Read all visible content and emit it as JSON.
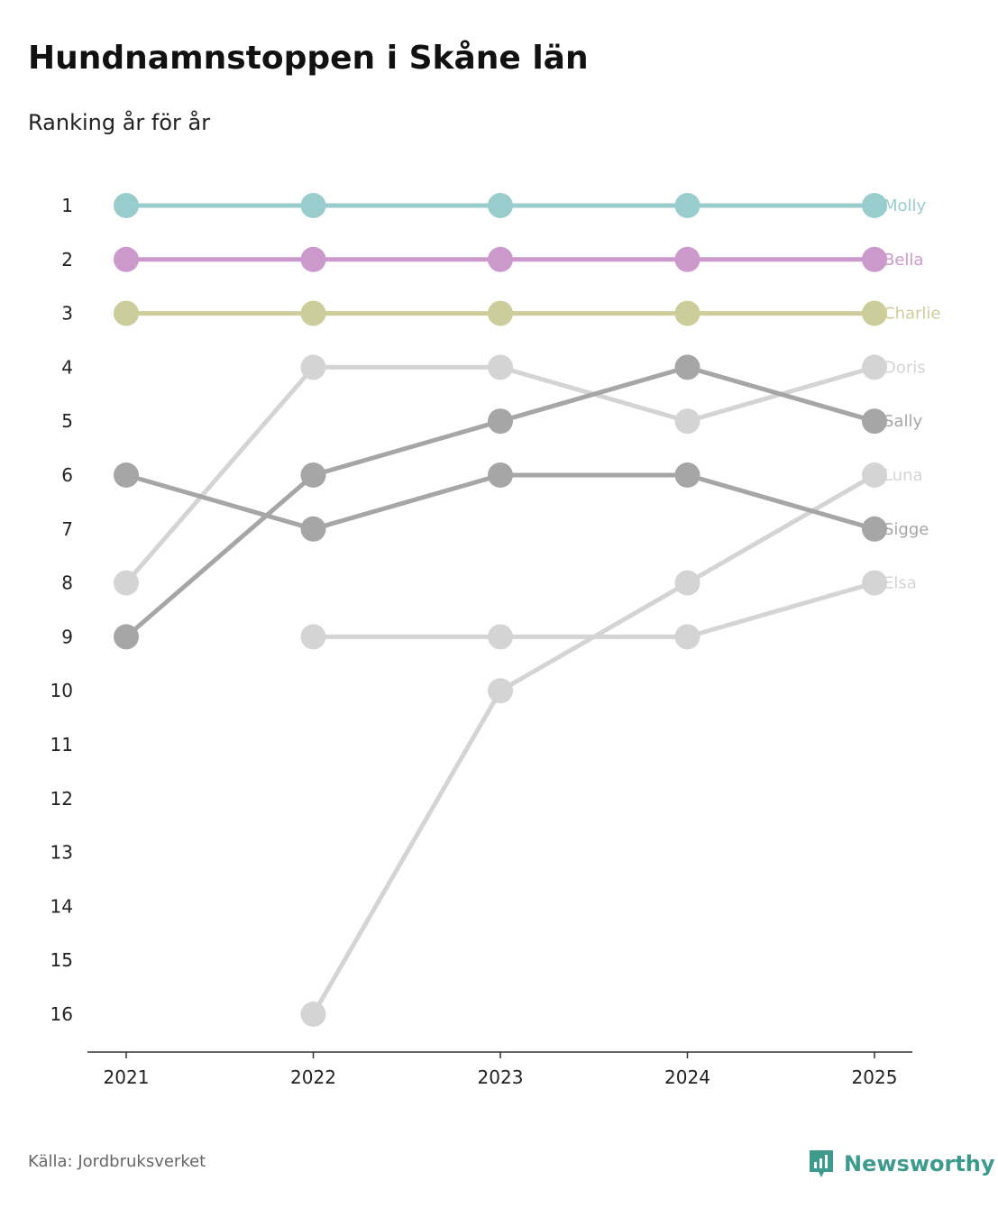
{
  "title": "Hundnamnstoppen i Skåne län",
  "subtitle": "Ranking år för år",
  "source": "Källa: Jordbruksverket",
  "brand": {
    "name": "Newsworthy",
    "icon": "newsworthy-logo-icon",
    "color": "#3f9a8e"
  },
  "chart_data": {
    "type": "line",
    "title": "Hundnamnstoppen i Skåne län",
    "subtitle": "Ranking år för år",
    "xlabel": "",
    "ylabel": "",
    "x": [
      "2021",
      "2022",
      "2023",
      "2024",
      "2025"
    ],
    "y_ticks": [
      "1",
      "2",
      "3",
      "4",
      "5",
      "6",
      "7",
      "8",
      "9",
      "10",
      "11",
      "12",
      "13",
      "14",
      "15",
      "16"
    ],
    "ylim": [
      1,
      16
    ],
    "y_inverted": true,
    "grid": false,
    "legend": "end-of-line labels",
    "series": [
      {
        "name": "Elsa",
        "color": "#d4d4d4",
        "values": [
          null,
          9,
          9,
          9,
          8
        ]
      },
      {
        "name": "Luna",
        "color": "#d4d4d4",
        "values": [
          null,
          16,
          10,
          8,
          6
        ]
      },
      {
        "name": "Doris",
        "color": "#d4d4d4",
        "values": [
          8,
          4,
          4,
          5,
          4
        ]
      },
      {
        "name": "Sigge",
        "color": "#a6a6a6",
        "values": [
          6,
          7,
          6,
          6,
          7
        ]
      },
      {
        "name": "Sally",
        "color": "#a6a6a6",
        "values": [
          9,
          6,
          5,
          4,
          5
        ]
      },
      {
        "name": "Charlie",
        "color": "#cdcd9b",
        "values": [
          3,
          3,
          3,
          3,
          3
        ]
      },
      {
        "name": "Bella",
        "color": "#cc99cc",
        "values": [
          2,
          2,
          2,
          2,
          2
        ]
      },
      {
        "name": "Molly",
        "color": "#99cccc",
        "values": [
          1,
          1,
          1,
          1,
          1
        ]
      }
    ]
  }
}
